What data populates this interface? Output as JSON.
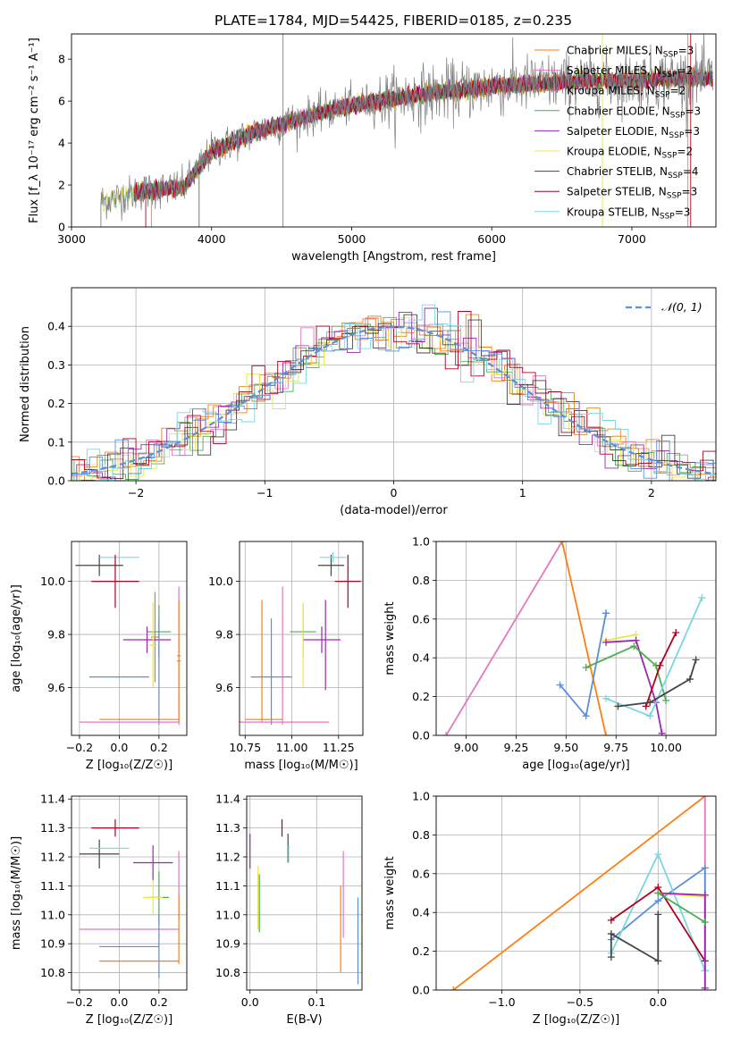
{
  "title": "PLATE=1784, MJD=54425, FIBERID=0185, z=0.235",
  "colors": {
    "cm": "#ff7f0e",
    "sm": "#e377c2",
    "km": "#d4861a",
    "ce": "#4caf50",
    "se": "#9c27b0",
    "ke": "#e8e84a",
    "cs": "#444444",
    "ss": "#b00020",
    "ks": "#7ad7e0",
    "dark": "#7f7f7f",
    "normal": "#5b8fd9"
  },
  "chart_data": [
    {
      "id": "spectrum",
      "type": "line",
      "xlabel": "wavelength [Angstrom, rest frame]",
      "ylabel": "Flux [f_λ 10⁻¹⁷ erg cm⁻² s⁻¹ A⁻¹]",
      "xlim": [
        3000,
        7600
      ],
      "ylim": [
        0,
        9.2
      ],
      "xticks": [
        3000,
        4000,
        5000,
        6000,
        7000
      ],
      "yticks": [
        0,
        2,
        4,
        6,
        8
      ],
      "grid": false,
      "legend": "top-right",
      "continuum": {
        "x": [
          3200,
          3500,
          3800,
          4000,
          4300,
          4700,
          5000,
          5500,
          6000,
          6500,
          7000,
          7400
        ],
        "y": [
          1.2,
          1.7,
          1.9,
          3.6,
          4.5,
          5.3,
          5.8,
          6.3,
          6.7,
          6.9,
          7.0,
          7.1
        ]
      },
      "legend_entries": [
        {
          "label": "Chabrier MILES, N",
          "sub": "SSP",
          "val": "=3",
          "color": "cm"
        },
        {
          "label": "Salpeter MILES, N",
          "sub": "SSP",
          "val": "=2",
          "color": "sm"
        },
        {
          "label": "Kroupa MILES, N",
          "sub": "SSP",
          "val": "=2",
          "color": "km"
        },
        {
          "label": "Chabrier ELODIE, N",
          "sub": "SSP",
          "val": "=3",
          "color": "ce"
        },
        {
          "label": "Salpeter ELODIE, N",
          "sub": "SSP",
          "val": "=3",
          "color": "se"
        },
        {
          "label": "Kroupa ELODIE, N",
          "sub": "SSP",
          "val": "=2",
          "color": "ke"
        },
        {
          "label": "Chabrier STELIB, N",
          "sub": "SSP",
          "val": "=4",
          "color": "cs"
        },
        {
          "label": "Salpeter STELIB, N",
          "sub": "SSP",
          "val": "=3",
          "color": "ss"
        },
        {
          "label": "Kroupa STELIB, N",
          "sub": "SSP",
          "val": "=3",
          "color": "ks"
        }
      ]
    },
    {
      "id": "residuals",
      "type": "line",
      "xlabel": "(data-model)/error",
      "ylabel": "Normed distribution",
      "xlim": [
        -2.5,
        2.5
      ],
      "ylim": [
        0,
        0.5
      ],
      "xticks": [
        -2,
        -1,
        0,
        1,
        2
      ],
      "yticks": [
        0.0,
        0.1,
        0.2,
        0.3,
        0.4
      ],
      "grid": true,
      "legend": "top-right",
      "legend_label": "𝒩(0, 1)"
    },
    {
      "id": "age_Z",
      "type": "scatter",
      "xlabel": "Z [log₁₀(Z/Z☉)]",
      "ylabel": "age  [log₁₀(age/yr)]",
      "xlim": [
        -0.24,
        0.34
      ],
      "ylim": [
        9.42,
        10.15
      ],
      "xticks": [
        -0.2,
        0.0,
        0.2
      ],
      "yticks": [
        9.6,
        9.8,
        10.0
      ],
      "grid": true,
      "points": [
        {
          "x": -0.1,
          "xe": 0.12,
          "y": 10.06,
          "ye": 0.04,
          "c": "cs"
        },
        {
          "x": 0.0,
          "xe": 0.1,
          "y": 10.09,
          "ye": 0.02,
          "c": "ks"
        },
        {
          "x": -0.02,
          "xe": 0.12,
          "y": 10.0,
          "ye": 0.1,
          "c": "ss"
        },
        {
          "x": 0.2,
          "xe": 0.06,
          "y": 9.81,
          "ye": 0.1,
          "c": "ce"
        },
        {
          "x": 0.18,
          "xe": 0.02,
          "y": 9.79,
          "ye": 0.17,
          "c": "km"
        },
        {
          "x": 0.14,
          "xe": 0.12,
          "y": 9.78,
          "ye": 0.05,
          "c": "se"
        },
        {
          "x": 0.17,
          "xe": 0.02,
          "y": 9.76,
          "ye": 0.16,
          "c": "ke"
        },
        {
          "x": 0.3,
          "xe": 0.01,
          "y": 9.72,
          "ye": 0.26,
          "c": "sm"
        },
        {
          "x": 0.3,
          "xe": 0.01,
          "y": 9.7,
          "ye": 0.23,
          "c": "cm"
        },
        {
          "x": 0.0,
          "xe": 0.15,
          "y": 9.64,
          "ye": 0.0,
          "c": "normal"
        },
        {
          "x": 0.2,
          "xe": 0.0,
          "y": 9.66,
          "ye": 0.2,
          "c": "normal"
        },
        {
          "x": 0.05,
          "xe": 0.25,
          "y": 9.47,
          "ye": 0.0,
          "c": "sm"
        },
        {
          "x": 0.1,
          "xe": 0.2,
          "y": 9.48,
          "ye": 0.0,
          "c": "cm"
        }
      ]
    },
    {
      "id": "age_mass",
      "type": "scatter",
      "xlabel": "mass [log₁₀(M/M☉)]",
      "ylabel": "",
      "xlim": [
        10.72,
        11.38
      ],
      "ylim": [
        9.42,
        10.15
      ],
      "xticks": [
        10.75,
        11.0,
        11.25
      ],
      "yticks": [
        9.6,
        9.8,
        10.0
      ],
      "grid": true,
      "points": [
        {
          "x": 11.21,
          "xe": 0.07,
          "y": 10.06,
          "ye": 0.04,
          "c": "cs"
        },
        {
          "x": 11.22,
          "xe": 0.07,
          "y": 10.09,
          "ye": 0.02,
          "c": "ks"
        },
        {
          "x": 11.3,
          "xe": 0.07,
          "y": 10.0,
          "ye": 0.1,
          "c": "ss"
        },
        {
          "x": 11.06,
          "xe": 0.07,
          "y": 9.81,
          "ye": 0.1,
          "c": "ce"
        },
        {
          "x": 11.16,
          "xe": 0.1,
          "y": 9.78,
          "ye": 0.05,
          "c": "se"
        },
        {
          "x": 11.18,
          "xe": 0.0,
          "y": 9.76,
          "ye": 0.17,
          "c": "se"
        },
        {
          "x": 11.06,
          "xe": 0.0,
          "y": 9.76,
          "ye": 0.16,
          "c": "ke"
        },
        {
          "x": 10.95,
          "xe": 0.0,
          "y": 9.72,
          "ye": 0.26,
          "c": "sm"
        },
        {
          "x": 10.84,
          "xe": 0.0,
          "y": 9.7,
          "ye": 0.23,
          "c": "cm"
        },
        {
          "x": 10.89,
          "xe": 0.0,
          "y": 9.66,
          "ye": 0.2,
          "c": "normal"
        },
        {
          "x": 10.89,
          "xe": 0.11,
          "y": 9.64,
          "ye": 0.0,
          "c": "normal"
        },
        {
          "x": 10.95,
          "xe": 0.25,
          "y": 9.47,
          "ye": 0.0,
          "c": "sm"
        },
        {
          "x": 10.85,
          "xe": 0.1,
          "y": 9.48,
          "ye": 0.0,
          "c": "cm"
        }
      ]
    },
    {
      "id": "mw_age",
      "type": "line",
      "xlabel": "age  [log₁₀(age/yr)]",
      "ylabel": "mass weight",
      "xlim": [
        8.85,
        10.25
      ],
      "ylim": [
        0,
        1
      ],
      "xticks": [
        9.0,
        9.25,
        9.5,
        9.75,
        10.0
      ],
      "yticks": [
        0.0,
        0.2,
        0.4,
        0.6,
        0.8,
        1.0
      ],
      "grid": true,
      "series": [
        {
          "c": "sm",
          "x": [
            8.9,
            9.48
          ],
          "y": [
            0.0,
            1.0
          ]
        },
        {
          "c": "cm",
          "x": [
            9.48,
            9.7
          ],
          "y": [
            1.0,
            0.0
          ]
        },
        {
          "c": "normal",
          "x": [
            9.47,
            9.6,
            9.7,
            9.7
          ],
          "y": [
            0.26,
            0.1,
            0.63,
            0.63
          ]
        },
        {
          "c": "ke",
          "x": [
            9.7,
            9.85
          ],
          "y": [
            0.49,
            0.52
          ]
        },
        {
          "c": "se",
          "x": [
            9.7,
            9.85,
            9.95,
            9.98
          ],
          "y": [
            0.48,
            0.49,
            0.17,
            0.01
          ]
        },
        {
          "c": "ce",
          "x": [
            9.6,
            9.84,
            9.95,
            10.0
          ],
          "y": [
            0.35,
            0.46,
            0.36,
            0.18
          ]
        },
        {
          "c": "ss",
          "x": [
            9.9,
            9.97,
            10.05
          ],
          "y": [
            0.15,
            0.36,
            0.53
          ]
        },
        {
          "c": "ks",
          "x": [
            9.7,
            9.92,
            10.18
          ],
          "y": [
            0.19,
            0.1,
            0.71
          ]
        },
        {
          "c": "cs",
          "x": [
            9.76,
            9.92,
            10.12,
            10.15
          ],
          "y": [
            0.15,
            0.17,
            0.29,
            0.39
          ]
        }
      ]
    },
    {
      "id": "mass_Z",
      "type": "scatter",
      "xlabel": "Z [log₁₀(Z/Z☉)]",
      "ylabel": "mass [log₁₀(M/M☉)]",
      "xlim": [
        -0.24,
        0.34
      ],
      "ylim": [
        10.74,
        11.41
      ],
      "xticks": [
        -0.2,
        0.0,
        0.2
      ],
      "yticks": [
        10.8,
        10.9,
        11.0,
        11.1,
        11.2,
        11.3,
        11.4
      ],
      "grid": true,
      "points": [
        {
          "x": -0.02,
          "xe": 0.12,
          "y": 11.3,
          "ye": 0.03,
          "c": "ss"
        },
        {
          "x": -0.1,
          "xe": 0.1,
          "y": 11.21,
          "ye": 0.05,
          "c": "cs"
        },
        {
          "x": -0.05,
          "xe": 0.1,
          "y": 11.23,
          "ye": 0.0,
          "c": "ks"
        },
        {
          "x": 0.17,
          "xe": 0.1,
          "y": 11.18,
          "ye": 0.06,
          "c": "se"
        },
        {
          "x": 0.2,
          "xe": 0.05,
          "y": 11.06,
          "ye": 0.09,
          "c": "ce"
        },
        {
          "x": 0.17,
          "xe": 0.05,
          "y": 11.06,
          "ye": 0.06,
          "c": "ke"
        },
        {
          "x": 0.3,
          "xe": 0.0,
          "y": 11.1,
          "ye": 0.12,
          "c": "sm"
        },
        {
          "x": 0.3,
          "xe": 0.0,
          "y": 10.95,
          "ye": 0.12,
          "c": "cm"
        },
        {
          "x": 0.05,
          "xe": 0.25,
          "y": 10.95,
          "ye": 0.0,
          "c": "sm"
        },
        {
          "x": 0.05,
          "xe": 0.15,
          "y": 10.89,
          "ye": 0.0,
          "c": "normal"
        },
        {
          "x": 0.2,
          "xe": 0.0,
          "y": 10.89,
          "ye": 0.11,
          "c": "normal"
        },
        {
          "x": 0.1,
          "xe": 0.2,
          "y": 10.84,
          "ye": 0.0,
          "c": "cm"
        }
      ]
    },
    {
      "id": "mass_ebv",
      "type": "scatter",
      "xlabel": "E(B-V)",
      "ylabel": "",
      "xlim": [
        -0.005,
        0.168
      ],
      "ylim": [
        10.74,
        11.41
      ],
      "xticks": [
        0.0,
        0.1
      ],
      "yticks": [
        10.8,
        10.9,
        11.0,
        11.1,
        11.2,
        11.3,
        11.4
      ],
      "grid": true,
      "points": [
        {
          "x": 0.0,
          "xe": 0.0,
          "y": 11.22,
          "ye": 0.06,
          "c": "se"
        },
        {
          "x": 0.048,
          "xe": 0.0,
          "y": 11.3,
          "ye": 0.03,
          "c": "ss"
        },
        {
          "x": 0.057,
          "xe": 0.0,
          "y": 11.23,
          "ye": 0.05,
          "c": "cs"
        },
        {
          "x": 0.058,
          "xe": 0.0,
          "y": 11.21,
          "ye": 0.03,
          "c": "ks"
        },
        {
          "x": 0.012,
          "xe": 0.0,
          "y": 11.06,
          "ye": 0.11,
          "c": "ke"
        },
        {
          "x": 0.014,
          "xe": 0.0,
          "y": 11.04,
          "ye": 0.1,
          "c": "ce"
        },
        {
          "x": 0.136,
          "xe": 0.0,
          "y": 10.95,
          "ye": 0.15,
          "c": "cm"
        },
        {
          "x": 0.14,
          "xe": 0.0,
          "y": 11.07,
          "ye": 0.15,
          "c": "sm"
        },
        {
          "x": 0.162,
          "xe": 0.0,
          "y": 10.91,
          "ye": 0.15,
          "c": "normal"
        }
      ]
    },
    {
      "id": "mw_Z",
      "type": "line",
      "xlabel": "Z [log₁₀(Z/Z☉)]",
      "ylabel": "mass weight",
      "xlim": [
        -1.42,
        0.37
      ],
      "ylim": [
        0,
        1
      ],
      "xticks": [
        -1.0,
        -0.5,
        0.0
      ],
      "yticks": [
        0.0,
        0.2,
        0.4,
        0.6,
        0.8,
        1.0
      ],
      "grid": true,
      "series": [
        {
          "c": "cm",
          "x": [
            -1.31,
            0.3
          ],
          "y": [
            0.0,
            1.0
          ]
        },
        {
          "c": "sm",
          "x": [
            0.3,
            0.3
          ],
          "y": [
            0.0,
            1.0
          ]
        },
        {
          "c": "normal",
          "x": [
            -0.3,
            0.0,
            0.3,
            0.3
          ],
          "y": [
            0.26,
            0.46,
            0.63,
            0.1
          ]
        },
        {
          "c": "ks",
          "x": [
            -0.3,
            0.0,
            0.3
          ],
          "y": [
            0.19,
            0.7,
            0.1
          ]
        },
        {
          "c": "ss",
          "x": [
            -0.3,
            0.0,
            0.3
          ],
          "y": [
            0.36,
            0.53,
            0.15
          ]
        },
        {
          "c": "ke",
          "x": [
            0.0,
            0.3
          ],
          "y": [
            0.5,
            0.48
          ]
        },
        {
          "c": "se",
          "x": [
            0.0,
            0.3,
            0.3
          ],
          "y": [
            0.5,
            0.49,
            0.01
          ]
        },
        {
          "c": "ce",
          "x": [
            0.0,
            0.3
          ],
          "y": [
            0.5,
            0.35
          ]
        },
        {
          "c": "cs",
          "x": [
            -0.3,
            -0.3,
            0.0,
            0.0
          ],
          "y": [
            0.17,
            0.29,
            0.15,
            0.39
          ]
        }
      ]
    }
  ]
}
